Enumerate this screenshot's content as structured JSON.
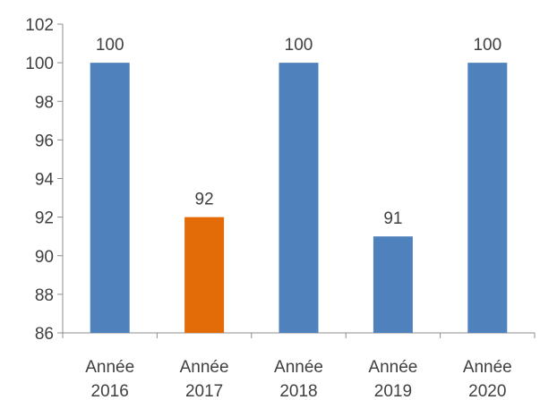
{
  "chart_data": {
    "type": "bar",
    "categories": [
      [
        "Année",
        "2016"
      ],
      [
        "Année",
        "2017"
      ],
      [
        "Année",
        "2018"
      ],
      [
        "Année",
        "2019"
      ],
      [
        "Année",
        "2020"
      ]
    ],
    "values": [
      100,
      92,
      100,
      91,
      100
    ],
    "data_labels": [
      "100",
      "92",
      "100",
      "91",
      "100"
    ],
    "bar_colors": [
      "#4f81bd",
      "#e36c09",
      "#4f81bd",
      "#4f81bd",
      "#4f81bd"
    ],
    "ylim": [
      86,
      102
    ],
    "yticks": [
      86,
      88,
      90,
      92,
      94,
      96,
      98,
      100,
      102
    ],
    "title": "",
    "xlabel": "",
    "ylabel": "",
    "grid": false,
    "legend": "none"
  }
}
